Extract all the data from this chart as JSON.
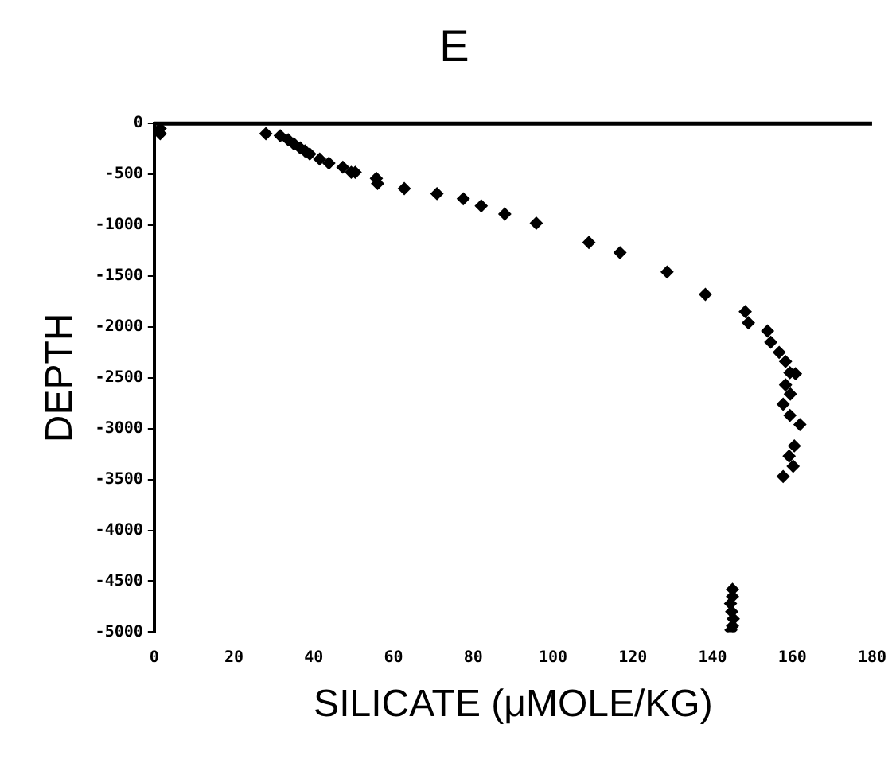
{
  "chart_data": {
    "type": "scatter",
    "title": "E",
    "xlabel": "SILICATE (μMOLE/KG)",
    "ylabel": "DEPTH",
    "x": [
      1.5,
      1.5,
      28,
      31.6,
      33.6,
      35,
      36.6,
      37.8,
      39,
      41.5,
      43.8,
      47.3,
      49.4,
      50.4,
      55.7,
      56,
      62.7,
      70.9,
      77.5,
      82,
      87.9,
      95.8,
      109,
      116.8,
      128.6,
      138.2,
      148.2,
      149,
      153.8,
      154.6,
      156.7,
      158.3,
      159.4,
      160.8,
      158.3,
      159.5,
      157.7,
      159.4,
      161.9,
      160.5,
      159.2,
      160.2,
      157.7,
      145,
      145,
      144.5,
      144.8,
      145.2,
      145,
      144.6
    ],
    "values": [
      -50,
      -100,
      -100,
      -120,
      -160,
      -200,
      -240,
      -270,
      -300,
      -350,
      -390,
      -430,
      -480,
      -480,
      -540,
      -590,
      -640,
      -690,
      -740,
      -810,
      -890,
      -980,
      -1170,
      -1270,
      -1460,
      -1680,
      -1850,
      -1960,
      -2040,
      -2150,
      -2250,
      -2340,
      -2450,
      -2460,
      -2570,
      -2660,
      -2760,
      -2870,
      -2960,
      -3170,
      -3270,
      -3370,
      -3470,
      -4580,
      -4650,
      -4720,
      -4800,
      -4870,
      -4940,
      -4980
    ],
    "color": "#000000",
    "marker": "diamond",
    "grid": false,
    "legend": false,
    "xlim": [
      0,
      180
    ],
    "xticks": [
      0,
      20,
      40,
      60,
      80,
      100,
      120,
      140,
      160,
      180
    ],
    "ylim": [
      -5000,
      0
    ],
    "yticks": [
      -5000,
      -4500,
      -4000,
      -3500,
      -3000,
      -2500,
      -2000,
      -1500,
      -1000,
      -500,
      0
    ],
    "ref_lines": [
      {
        "axis": "y",
        "value": 0,
        "color": "#000000"
      }
    ]
  }
}
